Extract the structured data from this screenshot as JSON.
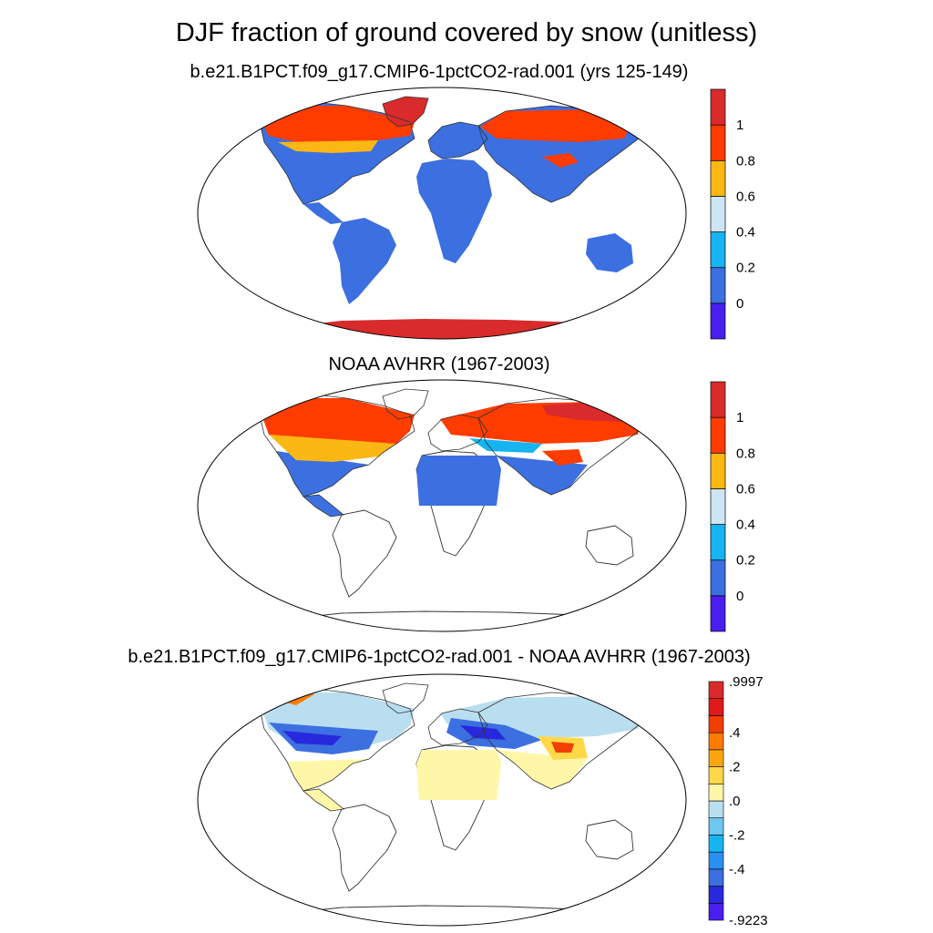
{
  "title": "DJF fraction of ground covered by snow (unitless)",
  "panels": [
    {
      "title": "b.e21.B1PCT.f09_g17.CMIP6-1pctCO2-rad.001 (yrs 125-149)"
    },
    {
      "title": "NOAA AVHRR (1967-2003)"
    },
    {
      "title": "b.e21.B1PCT.f09_g17.CMIP6-1pctCO2-rad.001 - NOAA AVHRR (1967-2003)"
    }
  ],
  "colorbars": {
    "abs": {
      "colors": [
        "#4b1ef0",
        "#3c6fe0",
        "#16b4f0",
        "#cde6f5",
        "#fbb714",
        "#ff3c00",
        "#d92b2b"
      ],
      "labels": [
        "0",
        "0.2",
        "0.4",
        "0.6",
        "0.8",
        "1"
      ]
    },
    "diff": {
      "colors": [
        "#4b1ef0",
        "#2828dc",
        "#3c6fe0",
        "#2a8ff0",
        "#16b4f0",
        "#6cc8f0",
        "#b9def0",
        "#fff7a8",
        "#ffd84a",
        "#fba60e",
        "#ff7a00",
        "#f23e00",
        "#e01a1a",
        "#d92b2b"
      ],
      "labels": [
        ".9997",
        ".4",
        ".2",
        ".0",
        "-.2",
        "-.4",
        "-.9223"
      ]
    }
  }
}
